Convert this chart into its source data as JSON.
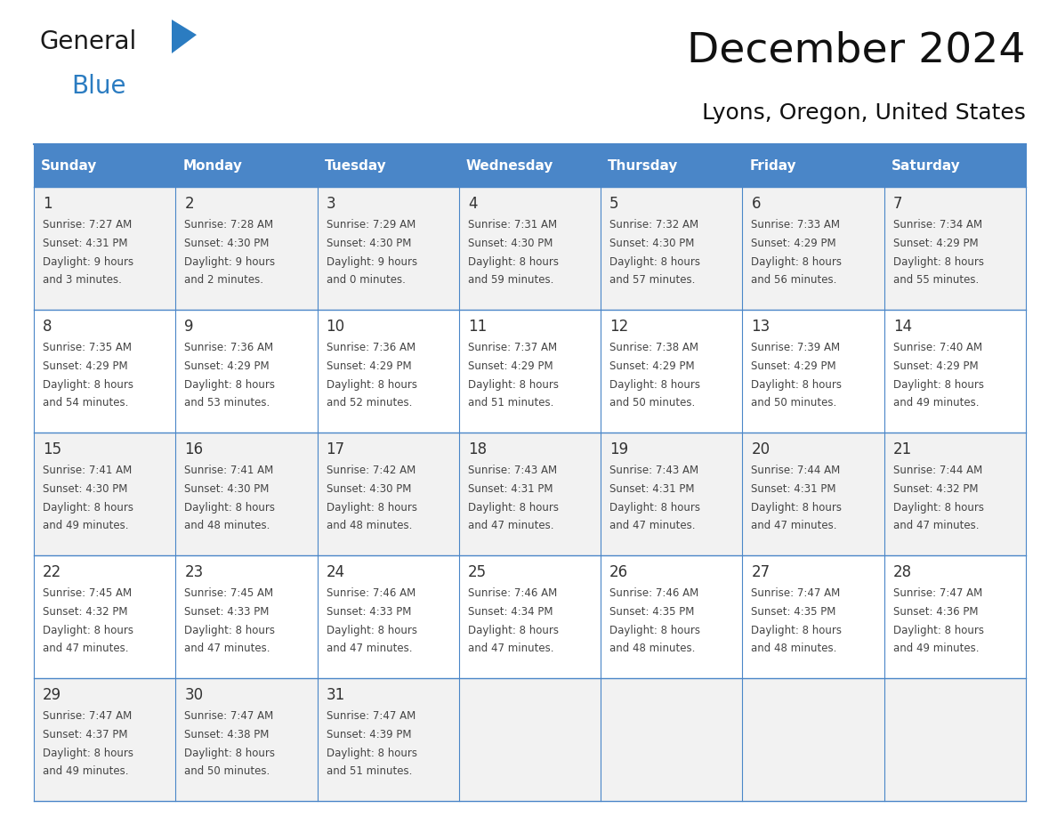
{
  "title": "December 2024",
  "subtitle": "Lyons, Oregon, United States",
  "header_color": "#4a86c8",
  "header_text_color": "#ffffff",
  "row_bg_odd": "#f2f2f2",
  "row_bg_even": "#ffffff",
  "grid_color": "#4a86c8",
  "day_number_color": "#333333",
  "cell_text_color": "#444444",
  "day_names": [
    "Sunday",
    "Monday",
    "Tuesday",
    "Wednesday",
    "Thursday",
    "Friday",
    "Saturday"
  ],
  "days": [
    {
      "date": 1,
      "col": 0,
      "row": 0,
      "sunrise": "7:27 AM",
      "sunset": "4:31 PM",
      "daylight_h": "9 hours",
      "daylight_m": "and 3 minutes."
    },
    {
      "date": 2,
      "col": 1,
      "row": 0,
      "sunrise": "7:28 AM",
      "sunset": "4:30 PM",
      "daylight_h": "9 hours",
      "daylight_m": "and 2 minutes."
    },
    {
      "date": 3,
      "col": 2,
      "row": 0,
      "sunrise": "7:29 AM",
      "sunset": "4:30 PM",
      "daylight_h": "9 hours",
      "daylight_m": "and 0 minutes."
    },
    {
      "date": 4,
      "col": 3,
      "row": 0,
      "sunrise": "7:31 AM",
      "sunset": "4:30 PM",
      "daylight_h": "8 hours",
      "daylight_m": "and 59 minutes."
    },
    {
      "date": 5,
      "col": 4,
      "row": 0,
      "sunrise": "7:32 AM",
      "sunset": "4:30 PM",
      "daylight_h": "8 hours",
      "daylight_m": "and 57 minutes."
    },
    {
      "date": 6,
      "col": 5,
      "row": 0,
      "sunrise": "7:33 AM",
      "sunset": "4:29 PM",
      "daylight_h": "8 hours",
      "daylight_m": "and 56 minutes."
    },
    {
      "date": 7,
      "col": 6,
      "row": 0,
      "sunrise": "7:34 AM",
      "sunset": "4:29 PM",
      "daylight_h": "8 hours",
      "daylight_m": "and 55 minutes."
    },
    {
      "date": 8,
      "col": 0,
      "row": 1,
      "sunrise": "7:35 AM",
      "sunset": "4:29 PM",
      "daylight_h": "8 hours",
      "daylight_m": "and 54 minutes."
    },
    {
      "date": 9,
      "col": 1,
      "row": 1,
      "sunrise": "7:36 AM",
      "sunset": "4:29 PM",
      "daylight_h": "8 hours",
      "daylight_m": "and 53 minutes."
    },
    {
      "date": 10,
      "col": 2,
      "row": 1,
      "sunrise": "7:36 AM",
      "sunset": "4:29 PM",
      "daylight_h": "8 hours",
      "daylight_m": "and 52 minutes."
    },
    {
      "date": 11,
      "col": 3,
      "row": 1,
      "sunrise": "7:37 AM",
      "sunset": "4:29 PM",
      "daylight_h": "8 hours",
      "daylight_m": "and 51 minutes."
    },
    {
      "date": 12,
      "col": 4,
      "row": 1,
      "sunrise": "7:38 AM",
      "sunset": "4:29 PM",
      "daylight_h": "8 hours",
      "daylight_m": "and 50 minutes."
    },
    {
      "date": 13,
      "col": 5,
      "row": 1,
      "sunrise": "7:39 AM",
      "sunset": "4:29 PM",
      "daylight_h": "8 hours",
      "daylight_m": "and 50 minutes."
    },
    {
      "date": 14,
      "col": 6,
      "row": 1,
      "sunrise": "7:40 AM",
      "sunset": "4:29 PM",
      "daylight_h": "8 hours",
      "daylight_m": "and 49 minutes."
    },
    {
      "date": 15,
      "col": 0,
      "row": 2,
      "sunrise": "7:41 AM",
      "sunset": "4:30 PM",
      "daylight_h": "8 hours",
      "daylight_m": "and 49 minutes."
    },
    {
      "date": 16,
      "col": 1,
      "row": 2,
      "sunrise": "7:41 AM",
      "sunset": "4:30 PM",
      "daylight_h": "8 hours",
      "daylight_m": "and 48 minutes."
    },
    {
      "date": 17,
      "col": 2,
      "row": 2,
      "sunrise": "7:42 AM",
      "sunset": "4:30 PM",
      "daylight_h": "8 hours",
      "daylight_m": "and 48 minutes."
    },
    {
      "date": 18,
      "col": 3,
      "row": 2,
      "sunrise": "7:43 AM",
      "sunset": "4:31 PM",
      "daylight_h": "8 hours",
      "daylight_m": "and 47 minutes."
    },
    {
      "date": 19,
      "col": 4,
      "row": 2,
      "sunrise": "7:43 AM",
      "sunset": "4:31 PM",
      "daylight_h": "8 hours",
      "daylight_m": "and 47 minutes."
    },
    {
      "date": 20,
      "col": 5,
      "row": 2,
      "sunrise": "7:44 AM",
      "sunset": "4:31 PM",
      "daylight_h": "8 hours",
      "daylight_m": "and 47 minutes."
    },
    {
      "date": 21,
      "col": 6,
      "row": 2,
      "sunrise": "7:44 AM",
      "sunset": "4:32 PM",
      "daylight_h": "8 hours",
      "daylight_m": "and 47 minutes."
    },
    {
      "date": 22,
      "col": 0,
      "row": 3,
      "sunrise": "7:45 AM",
      "sunset": "4:32 PM",
      "daylight_h": "8 hours",
      "daylight_m": "and 47 minutes."
    },
    {
      "date": 23,
      "col": 1,
      "row": 3,
      "sunrise": "7:45 AM",
      "sunset": "4:33 PM",
      "daylight_h": "8 hours",
      "daylight_m": "and 47 minutes."
    },
    {
      "date": 24,
      "col": 2,
      "row": 3,
      "sunrise": "7:46 AM",
      "sunset": "4:33 PM",
      "daylight_h": "8 hours",
      "daylight_m": "and 47 minutes."
    },
    {
      "date": 25,
      "col": 3,
      "row": 3,
      "sunrise": "7:46 AM",
      "sunset": "4:34 PM",
      "daylight_h": "8 hours",
      "daylight_m": "and 47 minutes."
    },
    {
      "date": 26,
      "col": 4,
      "row": 3,
      "sunrise": "7:46 AM",
      "sunset": "4:35 PM",
      "daylight_h": "8 hours",
      "daylight_m": "and 48 minutes."
    },
    {
      "date": 27,
      "col": 5,
      "row": 3,
      "sunrise": "7:47 AM",
      "sunset": "4:35 PM",
      "daylight_h": "8 hours",
      "daylight_m": "and 48 minutes."
    },
    {
      "date": 28,
      "col": 6,
      "row": 3,
      "sunrise": "7:47 AM",
      "sunset": "4:36 PM",
      "daylight_h": "8 hours",
      "daylight_m": "and 49 minutes."
    },
    {
      "date": 29,
      "col": 0,
      "row": 4,
      "sunrise": "7:47 AM",
      "sunset": "4:37 PM",
      "daylight_h": "8 hours",
      "daylight_m": "and 49 minutes."
    },
    {
      "date": 30,
      "col": 1,
      "row": 4,
      "sunrise": "7:47 AM",
      "sunset": "4:38 PM",
      "daylight_h": "8 hours",
      "daylight_m": "and 50 minutes."
    },
    {
      "date": 31,
      "col": 2,
      "row": 4,
      "sunrise": "7:47 AM",
      "sunset": "4:39 PM",
      "daylight_h": "8 hours",
      "daylight_m": "and 51 minutes."
    }
  ],
  "logo_text_general": "General",
  "logo_text_blue": "Blue",
  "logo_color_general": "#1a1a1a",
  "logo_color_blue": "#2b7cc1",
  "logo_triangle_color": "#2b7cc1",
  "title_fontsize": 34,
  "subtitle_fontsize": 18,
  "header_fontsize": 11,
  "day_num_fontsize": 12,
  "cell_fontsize": 8.5
}
